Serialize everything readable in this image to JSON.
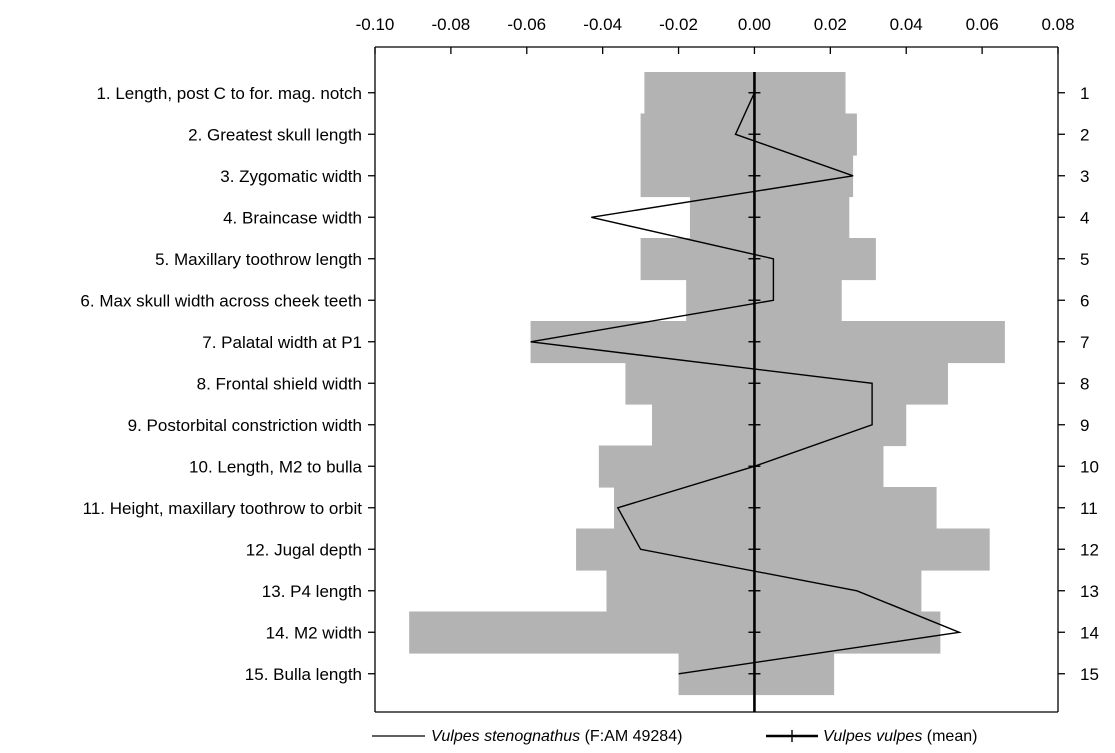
{
  "chart_data": {
    "type": "bar",
    "orientation": "horizontal",
    "xlim": [
      -0.1,
      0.08
    ],
    "x_ticks": [
      "-0.10",
      "-0.08",
      "-0.06",
      "-0.04",
      "-0.02",
      "0.00",
      "0.02",
      "0.04",
      "0.06",
      "0.08"
    ],
    "x_tick_values": [
      -0.1,
      -0.08,
      -0.06,
      -0.04,
      -0.02,
      0.0,
      0.02,
      0.04,
      0.06,
      0.08
    ],
    "categories": [
      "1. Length, post C to for. mag. notch",
      "2. Greatest skull length",
      "3. Zygomatic width",
      "4. Braincase width",
      "5. Maxillary toothrow length",
      "6. Max skull width across cheek teeth",
      "7. Palatal width at P1",
      "8. Frontal shield width",
      "9. Postorbital constriction width",
      "10. Length, M2 to bulla",
      "11. Height, maxillary toothrow to orbit",
      "12. Jugal depth",
      "13. P4 length",
      "14. M2 width",
      "15. Bulla length"
    ],
    "right_labels": [
      "1",
      "2",
      "3",
      "4",
      "5",
      "6",
      "7",
      "8",
      "9",
      "10",
      "11",
      "12",
      "13",
      "14",
      "15"
    ],
    "range_bars": {
      "min": [
        -0.029,
        -0.03,
        -0.03,
        -0.017,
        -0.03,
        -0.018,
        -0.059,
        -0.034,
        -0.027,
        -0.041,
        -0.037,
        -0.047,
        -0.039,
        -0.091,
        -0.02
      ],
      "max": [
        0.024,
        0.027,
        0.026,
        0.025,
        0.032,
        0.023,
        0.066,
        0.051,
        0.04,
        0.034,
        0.048,
        0.062,
        0.044,
        0.049,
        0.021
      ],
      "color": "#b3b3b3"
    },
    "series": [
      {
        "name_italic": "Vulpes stenognathus",
        "name_rest": " (F:AM 49284)",
        "values": [
          0.0,
          -0.005,
          0.026,
          -0.043,
          0.005,
          0.005,
          -0.059,
          0.031,
          0.031,
          0.0,
          -0.036,
          -0.03,
          0.027,
          0.054,
          -0.02
        ],
        "color": "#000000",
        "style": "thin-line"
      },
      {
        "name_italic": "Vulpes vulpes",
        "name_rest": " (mean)",
        "values": [
          0,
          0,
          0,
          0,
          0,
          0,
          0,
          0,
          0,
          0,
          0,
          0,
          0,
          0,
          0
        ],
        "color": "#000000",
        "style": "thick-line-with-ticks"
      }
    ],
    "legend_position": "bottom"
  }
}
